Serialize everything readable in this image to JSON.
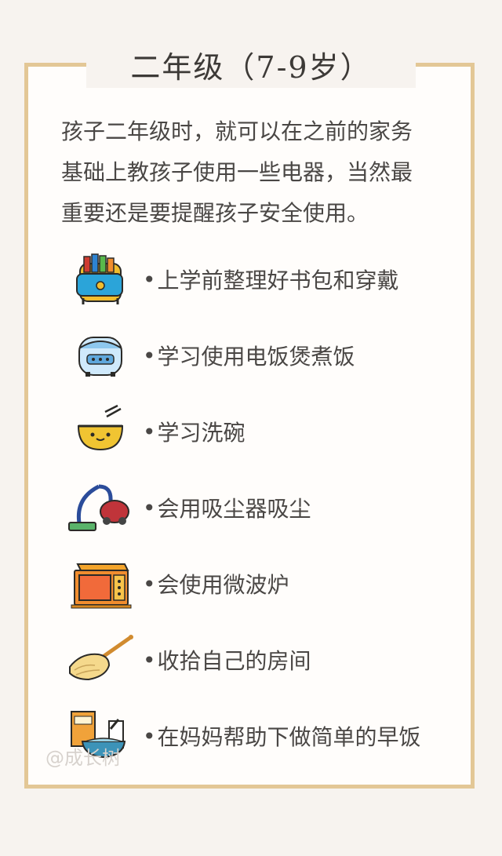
{
  "header": {
    "title": "二年级（7-9岁）"
  },
  "intro": {
    "lines": [
      "孩子二年级时，就可以在之前的家务",
      "基础上教孩子使用一些电器，当然最",
      "重要还是要提醒孩子安全使用。"
    ]
  },
  "list": {
    "items": [
      {
        "icon": "backpack-icon",
        "label": "上学前整理好书包和穿戴"
      },
      {
        "icon": "rice-cooker-icon",
        "label": "学习使用电饭煲煮饭"
      },
      {
        "icon": "bowl-icon",
        "label": "学习洗碗"
      },
      {
        "icon": "vacuum-cleaner-icon",
        "label": "会用吸尘器吸尘"
      },
      {
        "icon": "microwave-icon",
        "label": "会使用微波炉"
      },
      {
        "icon": "broom-icon",
        "label": "收拾自己的房间"
      },
      {
        "icon": "cereal-breakfast-icon",
        "label": "在妈妈帮助下做简单的早饭"
      }
    ]
  },
  "watermark": {
    "text": "@成长树"
  },
  "colors": {
    "background": "#f7f3ef",
    "card": "#fffdfb",
    "border": "#e3c796",
    "text": "#4a4745",
    "title": "#3d3a37"
  }
}
